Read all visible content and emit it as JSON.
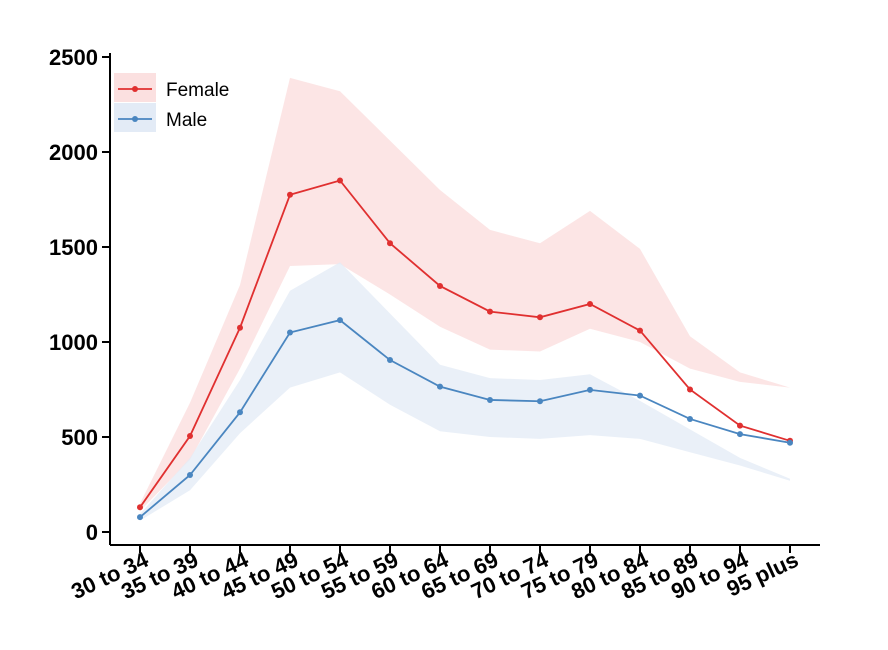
{
  "chart_data": {
    "type": "line",
    "title": "",
    "xlabel": "",
    "ylabel": "",
    "ylim": [
      0,
      2500
    ],
    "yticks": [
      0,
      500,
      1000,
      1500,
      2000,
      2500
    ],
    "legend_position": "top-left",
    "categories": [
      "30 to 34",
      "35 to 39",
      "40 to 44",
      "45 to 49",
      "50 to 54",
      "55 to 59",
      "60 to 64",
      "65 to 69",
      "70 to 74",
      "75 to 79",
      "80 to 84",
      "85 to 89",
      "90 to 94",
      "95 plus"
    ],
    "series": [
      {
        "name": "Female",
        "color": "#e03030",
        "band_color": "#fbe0e0",
        "values": [
          130,
          505,
          1075,
          1775,
          1850,
          1520,
          1295,
          1160,
          1130,
          1200,
          1060,
          750,
          560,
          480
        ],
        "lower": [
          110,
          380,
          860,
          1400,
          1410,
          1250,
          1080,
          960,
          950,
          1070,
          1000,
          860,
          790,
          760
        ],
        "upper": [
          150,
          680,
          1300,
          2390,
          2320,
          2060,
          1800,
          1590,
          1520,
          1690,
          1490,
          1030,
          840,
          760
        ]
      },
      {
        "name": "Male",
        "color": "#4a86c0",
        "band_color": "#e3ebf6",
        "values": [
          78,
          300,
          630,
          1050,
          1115,
          905,
          765,
          695,
          688,
          748,
          718,
          595,
          515,
          470
        ],
        "lower": [
          60,
          220,
          520,
          760,
          840,
          670,
          530,
          500,
          490,
          510,
          490,
          420,
          350,
          270
        ],
        "upper": [
          95,
          390,
          800,
          1270,
          1420,
          1150,
          880,
          810,
          800,
          830,
          690,
          540,
          390,
          280
        ]
      }
    ]
  }
}
